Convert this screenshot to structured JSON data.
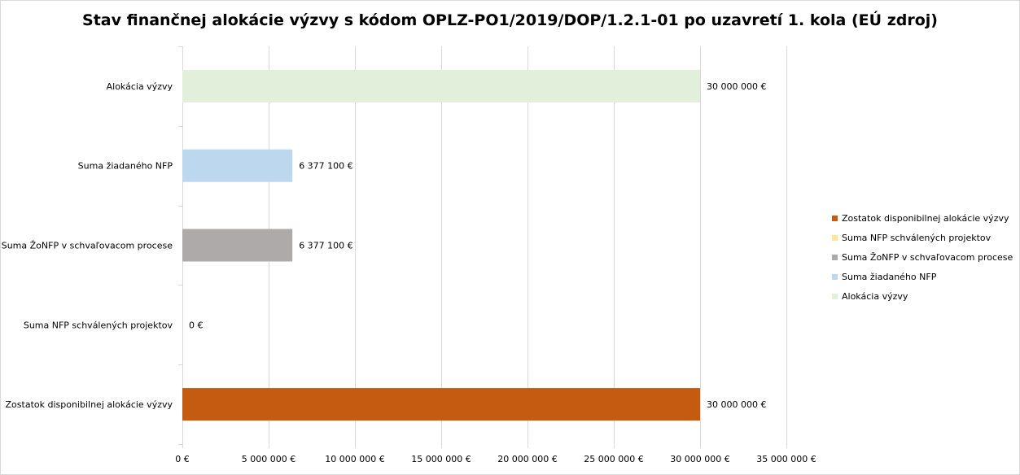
{
  "chart_data": {
    "type": "bar",
    "orientation": "horizontal",
    "title": "Stav finančnej alokácie výzvy s kódom OPLZ-PO1/2019/DOP/1.2.1-01 po uzavretí 1. kola (EÚ zdroj)",
    "categories": [
      "Alokácia výzvy",
      "Suma žiadaného NFP",
      "Suma ŽoNFP v schvaľovacom procese",
      "Suma NFP schválených projektov",
      "Zostatok disponibilnej alokácie výzvy"
    ],
    "values": [
      30000000,
      6377100,
      6377100,
      0,
      30000000
    ],
    "data_labels": [
      "30 000 000 €",
      "6 377 100 €",
      "6 377 100 €",
      "0 €",
      "30 000 000 €"
    ],
    "colors": [
      "#e2efda",
      "#bdd7ee",
      "#aeaaaa",
      "#ffe699",
      "#c55a11"
    ],
    "xlim": [
      0,
      35000000
    ],
    "x_ticks": [
      0,
      5000000,
      10000000,
      15000000,
      20000000,
      25000000,
      30000000,
      35000000
    ],
    "x_tick_labels": [
      "0 €",
      "5 000 000 €",
      "10 000 000 €",
      "15 000 000 €",
      "20 000 000 €",
      "25 000 000 €",
      "30 000 000 €",
      "35 000 000 €"
    ],
    "grid": true,
    "legend_position": "right",
    "legend": [
      {
        "label": "Zostatok disponibilnej alokácie výzvy",
        "color": "#c55a11"
      },
      {
        "label": "Suma NFP schválených projektov",
        "color": "#ffe699"
      },
      {
        "label": "Suma ŽoNFP v schvaľovacom procese",
        "color": "#aeaaaa"
      },
      {
        "label": "Suma žiadaného NFP",
        "color": "#bdd7ee"
      },
      {
        "label": "Alokácia výzvy",
        "color": "#e2efda"
      }
    ]
  }
}
